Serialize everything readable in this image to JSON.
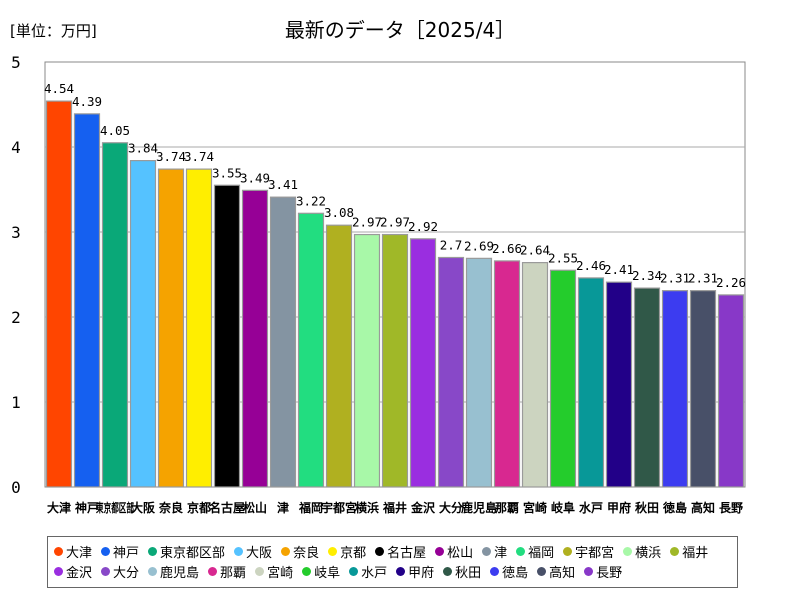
{
  "header": {
    "unit": "[単位：万円]",
    "title": "最新のデータ［2025/4］"
  },
  "chart_data": {
    "type": "bar",
    "title": "最新のデータ［2025/4］",
    "unit_label": "[単位：万円]",
    "ylim": [
      0,
      5
    ],
    "yticks": [
      0,
      1,
      2,
      3,
      4,
      5
    ],
    "grid": true,
    "legend_position": "bottom",
    "categories": [
      "大津",
      "神戸",
      "東京都区部",
      "大阪",
      "奈良",
      "京都",
      "名古屋",
      "松山",
      "津",
      "福岡",
      "宇都宮",
      "横浜",
      "福井",
      "金沢",
      "大分",
      "鹿児島",
      "那覇",
      "宮崎",
      "岐阜",
      "水戸",
      "甲府",
      "秋田",
      "徳島",
      "高知",
      "長野"
    ],
    "values": [
      4.54,
      4.39,
      4.05,
      3.84,
      3.74,
      3.74,
      3.55,
      3.49,
      3.41,
      3.22,
      3.08,
      2.97,
      2.97,
      2.92,
      2.7,
      2.69,
      2.66,
      2.64,
      2.55,
      2.46,
      2.41,
      2.34,
      2.31,
      2.31,
      2.26
    ],
    "value_labels": [
      "4.54",
      "4.39",
      "4.05",
      "3.84",
      "3.74",
      "3.74",
      "3.55",
      "3.49",
      "3.41",
      "3.22",
      "3.08",
      "2.97",
      "2.97",
      "2.92",
      "2.7",
      "2.69",
      "2.66",
      "2.64",
      "2.55",
      "2.46",
      "2.41",
      "2.34",
      "2.31",
      "2.31",
      "2.26"
    ],
    "colors": [
      "#ff4500",
      "#1560f0",
      "#0aa878",
      "#55c2ff",
      "#f5a300",
      "#ffee00",
      "#000000",
      "#960096",
      "#8494a2",
      "#22dd80",
      "#b0b020",
      "#a8f8a8",
      "#a0b828",
      "#9a2ee0",
      "#8848c8",
      "#98c0d0",
      "#d82890",
      "#ccd4c0",
      "#24cc2c",
      "#089898",
      "#220088",
      "#305848",
      "#3c3cf0",
      "#485068",
      "#8838c8"
    ]
  }
}
